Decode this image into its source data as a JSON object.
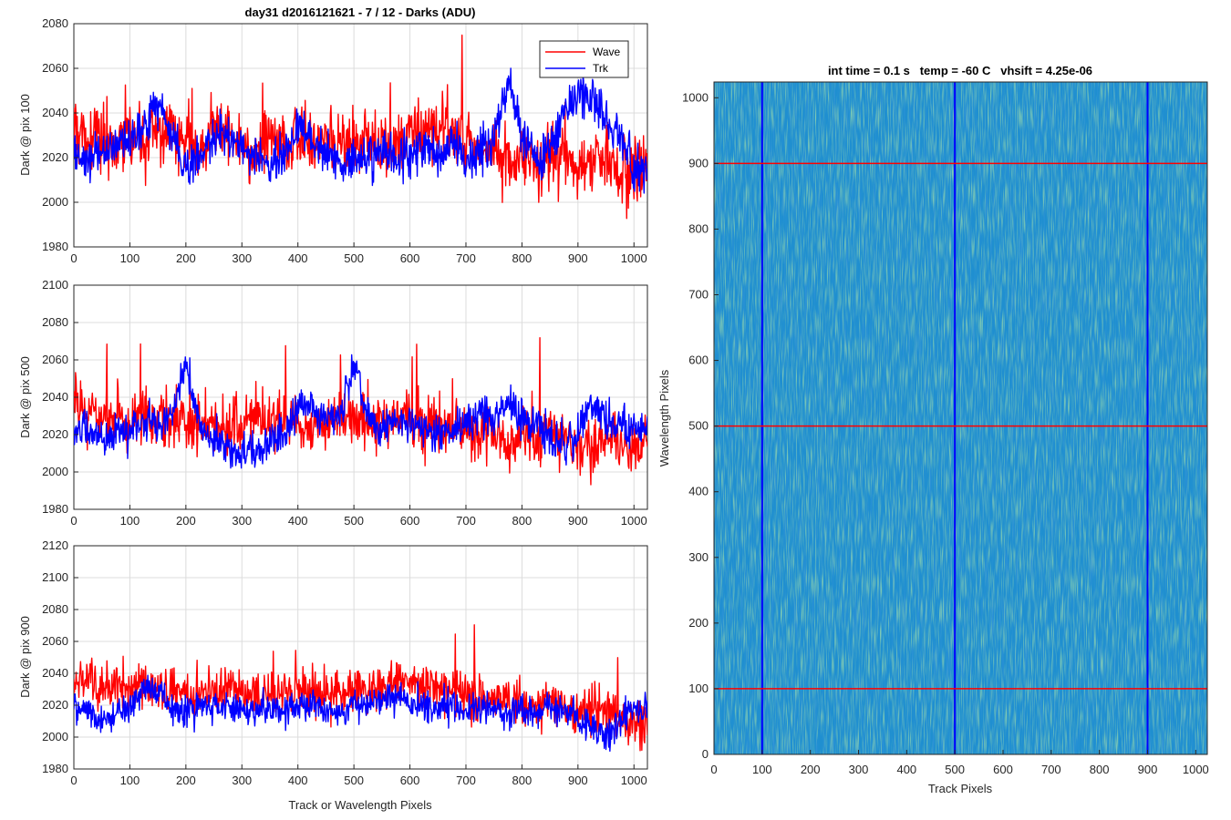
{
  "chart_data": [
    {
      "type": "line",
      "title": "day31 d2016121621 - 7 / 12 - Darks (ADU)",
      "xlabel": "",
      "ylabel": "Dark @ pix 100",
      "xlim": [
        0,
        1024
      ],
      "ylim": [
        1980,
        2080
      ],
      "xticks": [
        0,
        100,
        200,
        300,
        400,
        500,
        600,
        700,
        800,
        900,
        1000
      ],
      "yticks": [
        1980,
        2000,
        2020,
        2040,
        2060,
        2080
      ],
      "grid": true,
      "legend": {
        "placement": "top-right",
        "entries": [
          "Wave",
          "Trk"
        ]
      },
      "series": [
        {
          "name": "Wave",
          "color": "#ff0000",
          "x": [
            0,
            25,
            50,
            75,
            100,
            125,
            150,
            175,
            200,
            225,
            250,
            275,
            300,
            325,
            350,
            375,
            400,
            425,
            450,
            475,
            500,
            525,
            550,
            575,
            600,
            625,
            650,
            675,
            700,
            725,
            750,
            775,
            800,
            825,
            850,
            875,
            900,
            925,
            950,
            975,
            1000,
            1024
          ],
          "values": [
            2032,
            2030,
            2028,
            2025,
            2030,
            2028,
            2030,
            2035,
            2025,
            2022,
            2030,
            2032,
            2025,
            2022,
            2028,
            2030,
            2030,
            2025,
            2030,
            2028,
            2025,
            2028,
            2025,
            2022,
            2030,
            2032,
            2035,
            2030,
            2028,
            2025,
            2020,
            2018,
            2020,
            2018,
            2020,
            2018,
            2015,
            2018,
            2020,
            2015,
            2015,
            2018
          ]
        },
        {
          "name": "Trk",
          "color": "#0000ff",
          "x": [
            0,
            25,
            50,
            75,
            100,
            125,
            150,
            175,
            200,
            225,
            250,
            275,
            300,
            325,
            350,
            375,
            400,
            425,
            450,
            475,
            500,
            525,
            550,
            575,
            600,
            625,
            650,
            675,
            700,
            725,
            750,
            775,
            800,
            825,
            850,
            875,
            900,
            925,
            950,
            975,
            1000,
            1024
          ],
          "values": [
            2020,
            2018,
            2022,
            2025,
            2028,
            2035,
            2045,
            2030,
            2015,
            2020,
            2028,
            2030,
            2025,
            2020,
            2018,
            2020,
            2035,
            2030,
            2022,
            2020,
            2018,
            2020,
            2022,
            2020,
            2022,
            2025,
            2022,
            2025,
            2020,
            2022,
            2030,
            2055,
            2030,
            2020,
            2022,
            2040,
            2050,
            2045,
            2040,
            2030,
            2015,
            2012
          ]
        }
      ]
    },
    {
      "type": "line",
      "title": "",
      "xlabel": "",
      "ylabel": "Dark @ pix 500",
      "xlim": [
        0,
        1024
      ],
      "ylim": [
        1980,
        2100
      ],
      "xticks": [
        0,
        100,
        200,
        300,
        400,
        500,
        600,
        700,
        800,
        900,
        1000
      ],
      "yticks": [
        1980,
        2000,
        2020,
        2040,
        2060,
        2080,
        2100
      ],
      "grid": true,
      "series": [
        {
          "name": "Wave",
          "color": "#ff0000",
          "x": [
            0,
            25,
            50,
            75,
            100,
            125,
            150,
            175,
            200,
            225,
            250,
            275,
            300,
            325,
            350,
            375,
            400,
            425,
            450,
            475,
            500,
            525,
            550,
            575,
            600,
            625,
            650,
            675,
            700,
            725,
            750,
            775,
            800,
            825,
            850,
            875,
            900,
            925,
            950,
            975,
            1000,
            1024
          ],
          "values": [
            2035,
            2032,
            2030,
            2030,
            2028,
            2030,
            2030,
            2028,
            2025,
            2028,
            2025,
            2022,
            2025,
            2028,
            2025,
            2028,
            2025,
            2020,
            2025,
            2028,
            2030,
            2028,
            2025,
            2030,
            2028,
            2025,
            2025,
            2022,
            2022,
            2020,
            2020,
            2018,
            2020,
            2018,
            2020,
            2018,
            2015,
            2015,
            2018,
            2015,
            2012,
            2018
          ]
        },
        {
          "name": "Trk",
          "color": "#0000ff",
          "x": [
            0,
            25,
            50,
            75,
            100,
            125,
            150,
            175,
            200,
            225,
            250,
            275,
            300,
            325,
            350,
            375,
            400,
            425,
            450,
            475,
            500,
            525,
            550,
            575,
            600,
            625,
            650,
            675,
            700,
            725,
            750,
            775,
            800,
            825,
            850,
            875,
            900,
            925,
            950,
            975,
            1000,
            1024
          ],
          "values": [
            2025,
            2020,
            2018,
            2020,
            2022,
            2028,
            2025,
            2030,
            2058,
            2025,
            2018,
            2012,
            2010,
            2012,
            2015,
            2020,
            2035,
            2038,
            2028,
            2030,
            2060,
            2030,
            2022,
            2025,
            2025,
            2022,
            2020,
            2022,
            2025,
            2030,
            2028,
            2035,
            2030,
            2025,
            2018,
            2015,
            2020,
            2040,
            2028,
            2025,
            2022,
            2020
          ]
        }
      ]
    },
    {
      "type": "line",
      "title": "",
      "xlabel": "Track or Wavelength Pixels",
      "ylabel": "Dark @ pix 900",
      "xlim": [
        0,
        1024
      ],
      "ylim": [
        1980,
        2120
      ],
      "xticks": [
        0,
        100,
        200,
        300,
        400,
        500,
        600,
        700,
        800,
        900,
        1000
      ],
      "yticks": [
        1980,
        2000,
        2020,
        2040,
        2060,
        2080,
        2100,
        2120
      ],
      "grid": true,
      "series": [
        {
          "name": "Wave",
          "color": "#ff0000",
          "x": [
            0,
            25,
            50,
            75,
            100,
            125,
            150,
            175,
            200,
            225,
            250,
            275,
            300,
            325,
            350,
            375,
            400,
            425,
            450,
            475,
            500,
            525,
            550,
            575,
            600,
            625,
            650,
            675,
            700,
            725,
            750,
            775,
            800,
            825,
            850,
            875,
            900,
            925,
            950,
            975,
            1000,
            1024
          ],
          "values": [
            2030,
            2035,
            2030,
            2032,
            2030,
            2032,
            2030,
            2028,
            2028,
            2025,
            2028,
            2030,
            2028,
            2025,
            2028,
            2030,
            2028,
            2030,
            2025,
            2028,
            2030,
            2028,
            2030,
            2035,
            2035,
            2030,
            2032,
            2028,
            2028,
            2025,
            2025,
            2022,
            2020,
            2018,
            2022,
            2020,
            2015,
            2020,
            2015,
            2012,
            2008,
            2010
          ]
        },
        {
          "name": "Trk",
          "color": "#0000ff",
          "x": [
            0,
            25,
            50,
            75,
            100,
            125,
            150,
            175,
            200,
            225,
            250,
            275,
            300,
            325,
            350,
            375,
            400,
            425,
            450,
            475,
            500,
            525,
            550,
            575,
            600,
            625,
            650,
            675,
            700,
            725,
            750,
            775,
            800,
            825,
            850,
            875,
            900,
            925,
            950,
            975,
            1000,
            1024
          ],
          "values": [
            2020,
            2015,
            2010,
            2015,
            2018,
            2035,
            2028,
            2018,
            2015,
            2018,
            2020,
            2018,
            2015,
            2018,
            2015,
            2018,
            2020,
            2022,
            2018,
            2015,
            2018,
            2020,
            2022,
            2025,
            2022,
            2020,
            2018,
            2020,
            2018,
            2020,
            2018,
            2015,
            2018,
            2015,
            2020,
            2015,
            2012,
            2005,
            2000,
            2010,
            2018,
            2015
          ]
        }
      ]
    },
    {
      "type": "heatmap",
      "title": "int time = 0.1 s   temp = -60 C   vhsift = 4.25e-06",
      "xlabel": "Track Pixels",
      "ylabel": "Wavelength Pixels",
      "xlim": [
        0,
        1024
      ],
      "ylim": [
        0,
        1024
      ],
      "xticks": [
        0,
        100,
        200,
        300,
        400,
        500,
        600,
        700,
        800,
        900,
        1000
      ],
      "yticks": [
        0,
        100,
        200,
        300,
        400,
        500,
        600,
        700,
        800,
        900,
        1000
      ],
      "grid": false,
      "colormap": "parula",
      "base_color": "#1f8fd0",
      "vertical_lines": {
        "x": [
          100,
          500,
          900
        ],
        "color": "#0000ff"
      },
      "horizontal_lines": {
        "y": [
          100,
          500,
          900
        ],
        "color": "#ff0000"
      }
    }
  ]
}
